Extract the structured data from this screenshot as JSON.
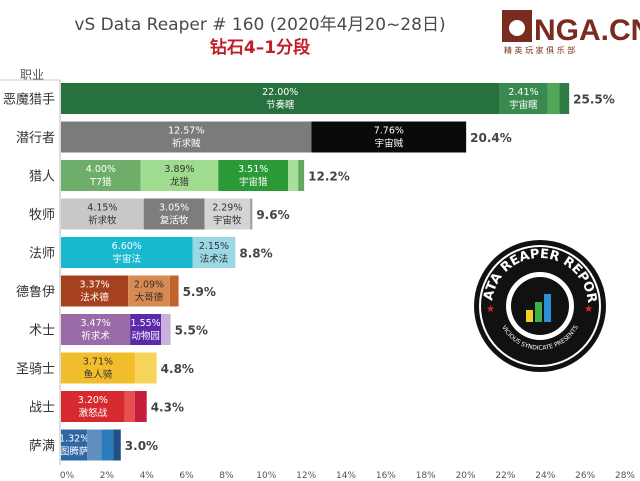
{
  "header": {
    "title": "vS Data Reaper # 160 (2020年4月20~28日)",
    "subtitle": "钻石4–1分段",
    "logo_text": "NGA.CN",
    "logo_subtext": "精 英 玩 家 俱 乐 部"
  },
  "badge": {
    "text_top": "DATA REAPER REPORT",
    "text_bottom": "VICIOUS SYNDICATE PRESENTS"
  },
  "chart_data": {
    "type": "bar",
    "orientation": "horizontal",
    "stacked": true,
    "ylabel": "职业",
    "xlim": [
      0,
      28
    ],
    "xticks": [
      "0%",
      "2%",
      "4%",
      "6%",
      "8%",
      "10%",
      "12%",
      "14%",
      "16%",
      "18%",
      "20%",
      "22%",
      "24%",
      "26%",
      "28%"
    ],
    "grid": false,
    "categories": [
      "恶魔猎手",
      "潜行者",
      "猎人",
      "牧师",
      "法师",
      "德鲁伊",
      "术士",
      "圣骑士",
      "战士",
      "萨满"
    ],
    "totals": [
      "25.5%",
      "20.4%",
      "12.2%",
      "9.6%",
      "8.8%",
      "5.9%",
      "5.5%",
      "4.8%",
      "4.3%",
      "3.0%"
    ],
    "rows": [
      {
        "segments": [
          {
            "value": 22.0,
            "label": "22.00%",
            "name": "节奏瞎",
            "color": "#27713f"
          },
          {
            "value": 2.41,
            "label": "2.41%",
            "name": "宇宙瞎",
            "color": "#3a8a4f"
          },
          {
            "value": 0.6,
            "color": "#52a65a"
          },
          {
            "value": 0.49,
            "color": "#2f7d45"
          }
        ]
      },
      {
        "segments": [
          {
            "value": 12.57,
            "label": "12.57%",
            "name": "祈求贼",
            "color": "#7b7b7b"
          },
          {
            "value": 7.76,
            "label": "7.76%",
            "name": "宇宙贼",
            "color": "#0a0a0a"
          }
        ]
      },
      {
        "segments": [
          {
            "value": 4.0,
            "label": "4.00%",
            "name": "T7猎",
            "color": "#6fae6a"
          },
          {
            "value": 3.89,
            "label": "3.89%",
            "name": "龙猎",
            "color": "#9fdc8f"
          },
          {
            "value": 3.51,
            "label": "3.51%",
            "name": "宇宙猎",
            "color": "#2b9a36"
          },
          {
            "value": 0.5,
            "color": "#a6e09a"
          },
          {
            "value": 0.3,
            "color": "#62a85f"
          }
        ]
      },
      {
        "segments": [
          {
            "value": 4.15,
            "label": "4.15%",
            "name": "祈求牧",
            "color": "#c8c8c8"
          },
          {
            "value": 3.05,
            "label": "3.05%",
            "name": "复活牧",
            "color": "#7d7d7d"
          },
          {
            "value": 2.29,
            "label": "2.29%",
            "name": "宇宙牧",
            "color": "#d4d4d4"
          },
          {
            "value": 0.11,
            "color": "#a0a0a0"
          }
        ]
      },
      {
        "segments": [
          {
            "value": 6.6,
            "label": "6.60%",
            "name": "宇宙法",
            "color": "#17b8d0"
          },
          {
            "value": 2.15,
            "label": "2.15%",
            "name": "法术法",
            "color": "#9ad8e6"
          }
        ]
      },
      {
        "segments": [
          {
            "value": 3.37,
            "label": "3.37%",
            "name": "法术德",
            "color": "#a5411f"
          },
          {
            "value": 2.09,
            "label": "2.09%",
            "name": "大哥德",
            "color": "#d98a50"
          },
          {
            "value": 0.44,
            "color": "#c0642f"
          }
        ]
      },
      {
        "segments": [
          {
            "value": 3.47,
            "label": "3.47%",
            "name": "祈求术",
            "color": "#9b6aa8"
          },
          {
            "value": 1.55,
            "label": "1.55%",
            "name": "动物园",
            "color": "#5a2aa8"
          },
          {
            "value": 0.48,
            "color": "#c8b2dc"
          }
        ]
      },
      {
        "segments": [
          {
            "value": 3.71,
            "label": "3.71%",
            "name": "鱼人骑",
            "color": "#f2bd2a"
          },
          {
            "value": 1.09,
            "color": "#f7d45a"
          }
        ]
      },
      {
        "segments": [
          {
            "value": 3.2,
            "label": "3.20%",
            "name": "激怒战",
            "color": "#d62a30"
          },
          {
            "value": 0.5,
            "color": "#e85050"
          },
          {
            "value": 0.6,
            "color": "#c41e3a"
          }
        ]
      },
      {
        "segments": [
          {
            "value": 1.32,
            "label": "1.32%",
            "name": "图腾萨",
            "color": "#2f67a3"
          },
          {
            "value": 0.7,
            "color": "#5f8fc0"
          },
          {
            "value": 0.6,
            "color": "#2b7bbd"
          },
          {
            "value": 0.38,
            "color": "#1f4f85"
          }
        ]
      }
    ]
  }
}
